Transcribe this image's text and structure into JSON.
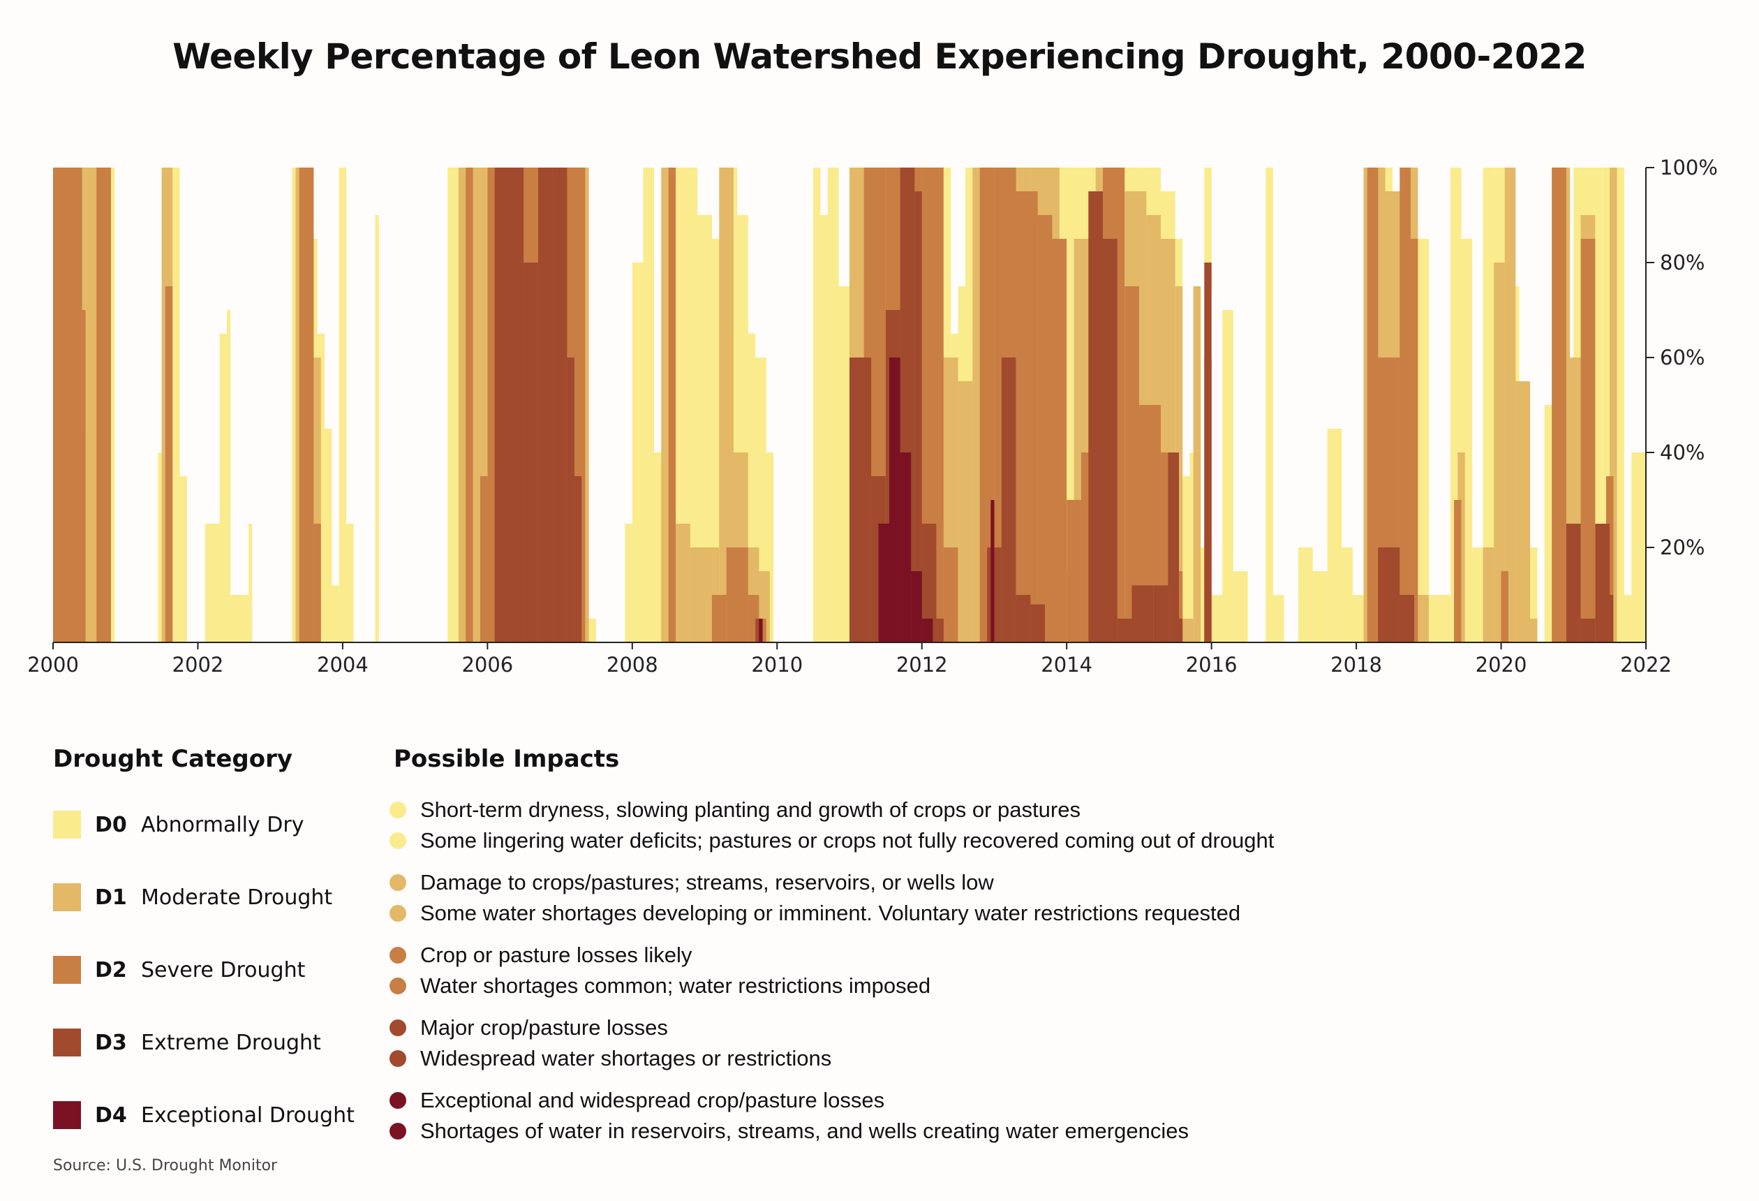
{
  "chart_data": {
    "type": "area",
    "title": "Weekly Percentage of Leon Watershed Experiencing Drought, 2000-2022",
    "xlabel": "",
    "ylabel": "",
    "xlim": [
      2000,
      2022
    ],
    "ylim": [
      0,
      100
    ],
    "x_ticks": [
      "2000",
      "2002",
      "2004",
      "2006",
      "2008",
      "2010",
      "2012",
      "2014",
      "2016",
      "2018",
      "2020",
      "2022"
    ],
    "y_ticks": [
      "20%",
      "40%",
      "60%",
      "80%",
      "100%"
    ],
    "y_tick_values": [
      20,
      40,
      60,
      80,
      100
    ],
    "series": [
      {
        "name": "D0",
        "color": "#faeb8c",
        "segments": [
          [
            2000.0,
            100
          ],
          [
            2000.4,
            100
          ],
          [
            2000.45,
            45
          ],
          [
            2000.55,
            100
          ],
          [
            2000.8,
            100
          ],
          [
            2000.85,
            0
          ],
          [
            2001.45,
            40
          ],
          [
            2001.55,
            100
          ],
          [
            2001.65,
            100
          ],
          [
            2001.75,
            35
          ],
          [
            2001.85,
            0
          ],
          [
            2002.1,
            25
          ],
          [
            2002.3,
            65
          ],
          [
            2002.4,
            70
          ],
          [
            2002.45,
            10
          ],
          [
            2002.7,
            25
          ],
          [
            2002.75,
            0
          ],
          [
            2003.3,
            100
          ],
          [
            2003.5,
            85
          ],
          [
            2003.65,
            65
          ],
          [
            2003.75,
            45
          ],
          [
            2003.85,
            12
          ],
          [
            2003.95,
            100
          ],
          [
            2004.05,
            25
          ],
          [
            2004.15,
            0
          ],
          [
            2004.45,
            90
          ],
          [
            2004.5,
            0
          ],
          [
            2005.45,
            100
          ],
          [
            2005.6,
            100
          ],
          [
            2005.75,
            25
          ],
          [
            2005.85,
            100
          ],
          [
            2006.0,
            100
          ],
          [
            2006.6,
            100
          ],
          [
            2007.0,
            100
          ],
          [
            2007.3,
            100
          ],
          [
            2007.4,
            5
          ],
          [
            2007.5,
            0
          ],
          [
            2007.9,
            25
          ],
          [
            2008.0,
            80
          ],
          [
            2008.15,
            100
          ],
          [
            2008.3,
            40
          ],
          [
            2008.5,
            100
          ],
          [
            2008.7,
            100
          ],
          [
            2008.9,
            90
          ],
          [
            2009.1,
            85
          ],
          [
            2009.3,
            100
          ],
          [
            2009.45,
            90
          ],
          [
            2009.6,
            65
          ],
          [
            2009.7,
            60
          ],
          [
            2009.85,
            40
          ],
          [
            2009.95,
            0
          ],
          [
            2010.5,
            100
          ],
          [
            2010.6,
            90
          ],
          [
            2010.7,
            100
          ],
          [
            2010.85,
            75
          ],
          [
            2011.0,
            100
          ],
          [
            2011.5,
            100
          ],
          [
            2012.0,
            100
          ],
          [
            2012.4,
            65
          ],
          [
            2012.5,
            75
          ],
          [
            2012.6,
            100
          ],
          [
            2013.0,
            100
          ],
          [
            2013.5,
            100
          ],
          [
            2014.0,
            100
          ],
          [
            2014.5,
            100
          ],
          [
            2015.0,
            100
          ],
          [
            2015.3,
            95
          ],
          [
            2015.5,
            85
          ],
          [
            2015.6,
            35
          ],
          [
            2015.7,
            40
          ],
          [
            2015.8,
            20
          ],
          [
            2015.9,
            100
          ],
          [
            2016.0,
            10
          ],
          [
            2016.15,
            70
          ],
          [
            2016.3,
            15
          ],
          [
            2016.5,
            0
          ],
          [
            2016.75,
            100
          ],
          [
            2016.85,
            10
          ],
          [
            2017.0,
            0
          ],
          [
            2017.2,
            20
          ],
          [
            2017.4,
            15
          ],
          [
            2017.6,
            45
          ],
          [
            2017.8,
            20
          ],
          [
            2017.95,
            10
          ],
          [
            2018.1,
            100
          ],
          [
            2018.3,
            100
          ],
          [
            2018.5,
            75
          ],
          [
            2018.7,
            100
          ],
          [
            2018.85,
            85
          ],
          [
            2019.0,
            10
          ],
          [
            2019.3,
            100
          ],
          [
            2019.45,
            85
          ],
          [
            2019.6,
            20
          ],
          [
            2019.75,
            100
          ],
          [
            2019.9,
            100
          ],
          [
            2020.1,
            75
          ],
          [
            2020.25,
            55
          ],
          [
            2020.4,
            20
          ],
          [
            2020.5,
            0
          ],
          [
            2020.6,
            50
          ],
          [
            2020.75,
            100
          ],
          [
            2020.9,
            55
          ],
          [
            2021.0,
            100
          ],
          [
            2021.2,
            100
          ],
          [
            2021.4,
            100
          ],
          [
            2021.6,
            100
          ],
          [
            2021.7,
            10
          ],
          [
            2021.8,
            40
          ],
          [
            2021.9,
            40
          ],
          [
            2022.0,
            0
          ]
        ]
      },
      {
        "name": "D1",
        "color": "#e3b866",
        "segments": [
          [
            2000.0,
            100
          ],
          [
            2000.45,
            100
          ],
          [
            2000.55,
            100
          ],
          [
            2000.8,
            0
          ],
          [
            2001.5,
            100
          ],
          [
            2001.65,
            0
          ],
          [
            2003.35,
            100
          ],
          [
            2003.6,
            60
          ],
          [
            2003.7,
            0
          ],
          [
            2005.6,
            100
          ],
          [
            2005.8,
            100
          ],
          [
            2006.0,
            100
          ],
          [
            2007.3,
            100
          ],
          [
            2007.4,
            0
          ],
          [
            2008.4,
            100
          ],
          [
            2008.6,
            25
          ],
          [
            2008.8,
            20
          ],
          [
            2009.0,
            20
          ],
          [
            2009.2,
            100
          ],
          [
            2009.4,
            40
          ],
          [
            2009.6,
            20
          ],
          [
            2009.75,
            15
          ],
          [
            2009.9,
            0
          ],
          [
            2011.0,
            100
          ],
          [
            2011.5,
            100
          ],
          [
            2012.0,
            100
          ],
          [
            2012.2,
            60
          ],
          [
            2012.5,
            55
          ],
          [
            2012.7,
            100
          ],
          [
            2013.0,
            100
          ],
          [
            2013.5,
            100
          ],
          [
            2013.9,
            15
          ],
          [
            2014.1,
            85
          ],
          [
            2014.4,
            100
          ],
          [
            2014.8,
            95
          ],
          [
            2015.1,
            90
          ],
          [
            2015.3,
            85
          ],
          [
            2015.5,
            75
          ],
          [
            2015.6,
            5
          ],
          [
            2015.75,
            75
          ],
          [
            2015.85,
            0
          ],
          [
            2018.1,
            100
          ],
          [
            2018.4,
            95
          ],
          [
            2018.7,
            100
          ],
          [
            2018.85,
            10
          ],
          [
            2019.0,
            0
          ],
          [
            2019.4,
            40
          ],
          [
            2019.5,
            0
          ],
          [
            2019.75,
            20
          ],
          [
            2019.9,
            80
          ],
          [
            2020.05,
            100
          ],
          [
            2020.2,
            55
          ],
          [
            2020.4,
            5
          ],
          [
            2020.5,
            0
          ],
          [
            2020.7,
            100
          ],
          [
            2020.95,
            60
          ],
          [
            2021.1,
            90
          ],
          [
            2021.3,
            20
          ],
          [
            2021.5,
            100
          ],
          [
            2021.6,
            0
          ]
        ]
      },
      {
        "name": "D2",
        "color": "#c97e44",
        "segments": [
          [
            2000.0,
            100
          ],
          [
            2000.4,
            70
          ],
          [
            2000.45,
            0
          ],
          [
            2000.6,
            100
          ],
          [
            2000.8,
            0
          ],
          [
            2001.55,
            75
          ],
          [
            2001.65,
            0
          ],
          [
            2003.4,
            100
          ],
          [
            2003.6,
            25
          ],
          [
            2003.7,
            0
          ],
          [
            2005.7,
            100
          ],
          [
            2005.8,
            0
          ],
          [
            2005.9,
            35
          ],
          [
            2006.0,
            100
          ],
          [
            2006.5,
            100
          ],
          [
            2007.0,
            100
          ],
          [
            2007.25,
            100
          ],
          [
            2007.35,
            0
          ],
          [
            2008.5,
            100
          ],
          [
            2008.6,
            0
          ],
          [
            2009.1,
            10
          ],
          [
            2009.3,
            20
          ],
          [
            2009.6,
            10
          ],
          [
            2009.75,
            5
          ],
          [
            2009.85,
            0
          ],
          [
            2011.0,
            60
          ],
          [
            2011.2,
            100
          ],
          [
            2011.5,
            100
          ],
          [
            2012.0,
            100
          ],
          [
            2012.3,
            20
          ],
          [
            2012.5,
            0
          ],
          [
            2012.8,
            100
          ],
          [
            2013.0,
            100
          ],
          [
            2013.3,
            95
          ],
          [
            2013.6,
            90
          ],
          [
            2013.8,
            85
          ],
          [
            2014.0,
            30
          ],
          [
            2014.2,
            40
          ],
          [
            2014.5,
            100
          ],
          [
            2014.8,
            75
          ],
          [
            2015.0,
            50
          ],
          [
            2015.3,
            40
          ],
          [
            2015.5,
            15
          ],
          [
            2015.6,
            0
          ],
          [
            2015.9,
            60
          ],
          [
            2016.0,
            0
          ],
          [
            2018.15,
            100
          ],
          [
            2018.3,
            60
          ],
          [
            2018.6,
            100
          ],
          [
            2018.75,
            85
          ],
          [
            2018.85,
            0
          ],
          [
            2019.35,
            30
          ],
          [
            2019.45,
            0
          ],
          [
            2020.0,
            15
          ],
          [
            2020.1,
            0
          ],
          [
            2020.7,
            100
          ],
          [
            2020.9,
            0
          ],
          [
            2021.1,
            85
          ],
          [
            2021.3,
            20
          ],
          [
            2021.45,
            35
          ],
          [
            2021.55,
            0
          ]
        ]
      },
      {
        "name": "D3",
        "color": "#a14a2d",
        "segments": [
          [
            2005.9,
            0
          ],
          [
            2006.1,
            100
          ],
          [
            2006.3,
            100
          ],
          [
            2006.5,
            80
          ],
          [
            2006.7,
            100
          ],
          [
            2006.9,
            100
          ],
          [
            2007.1,
            60
          ],
          [
            2007.2,
            35
          ],
          [
            2007.3,
            0
          ],
          [
            2009.7,
            5
          ],
          [
            2009.8,
            0
          ],
          [
            2011.0,
            60
          ],
          [
            2011.3,
            35
          ],
          [
            2011.5,
            70
          ],
          [
            2011.7,
            100
          ],
          [
            2011.9,
            95
          ],
          [
            2012.0,
            25
          ],
          [
            2012.2,
            5
          ],
          [
            2012.3,
            0
          ],
          [
            2012.9,
            20
          ],
          [
            2013.1,
            60
          ],
          [
            2013.3,
            10
          ],
          [
            2013.5,
            8
          ],
          [
            2013.7,
            0
          ],
          [
            2014.3,
            95
          ],
          [
            2014.5,
            85
          ],
          [
            2014.7,
            5
          ],
          [
            2014.9,
            12
          ],
          [
            2015.2,
            12
          ],
          [
            2015.4,
            40
          ],
          [
            2015.55,
            5
          ],
          [
            2015.6,
            0
          ],
          [
            2015.9,
            80
          ],
          [
            2016.0,
            0
          ],
          [
            2018.3,
            20
          ],
          [
            2018.6,
            10
          ],
          [
            2018.8,
            0
          ],
          [
            2020.9,
            25
          ],
          [
            2021.1,
            5
          ],
          [
            2021.3,
            25
          ],
          [
            2021.5,
            10
          ],
          [
            2021.55,
            0
          ]
        ]
      },
      {
        "name": "D4",
        "color": "#7a1224",
        "segments": [
          [
            2009.75,
            5
          ],
          [
            2009.8,
            0
          ],
          [
            2011.4,
            25
          ],
          [
            2011.55,
            60
          ],
          [
            2011.7,
            40
          ],
          [
            2011.85,
            15
          ],
          [
            2012.0,
            5
          ],
          [
            2012.15,
            0
          ],
          [
            2012.95,
            30
          ],
          [
            2013.0,
            0
          ]
        ]
      }
    ]
  },
  "legend": {
    "category_heading": "Drought Category",
    "impacts_heading": "Possible Impacts",
    "categories": [
      {
        "code": "D0",
        "name": "Abnormally Dry",
        "color": "#faeb8c"
      },
      {
        "code": "D1",
        "name": "Moderate Drought",
        "color": "#e3b866"
      },
      {
        "code": "D2",
        "name": "Severe Drought",
        "color": "#c97e44"
      },
      {
        "code": "D3",
        "name": "Extreme Drought",
        "color": "#a14a2d"
      },
      {
        "code": "D4",
        "name": "Exceptional Drought",
        "color": "#7a1224"
      }
    ],
    "impacts": [
      [
        "Short-term dryness, slowing planting and growth of crops or pastures",
        "Some lingering water deficits; pastures or crops not fully recovered coming out of drought"
      ],
      [
        "Damage to crops/pastures; streams, reservoirs, or wells low",
        "Some water shortages developing or imminent. Voluntary water restrictions requested"
      ],
      [
        "Crop or pasture losses likely",
        "Water shortages common; water restrictions imposed"
      ],
      [
        "Major crop/pasture losses",
        "Widespread water shortages or restrictions"
      ],
      [
        "Exceptional and widespread crop/pasture losses",
        "Shortages of water in reservoirs, streams, and wells creating water emergencies"
      ]
    ]
  },
  "source": "Source: U.S. Drought Monitor"
}
